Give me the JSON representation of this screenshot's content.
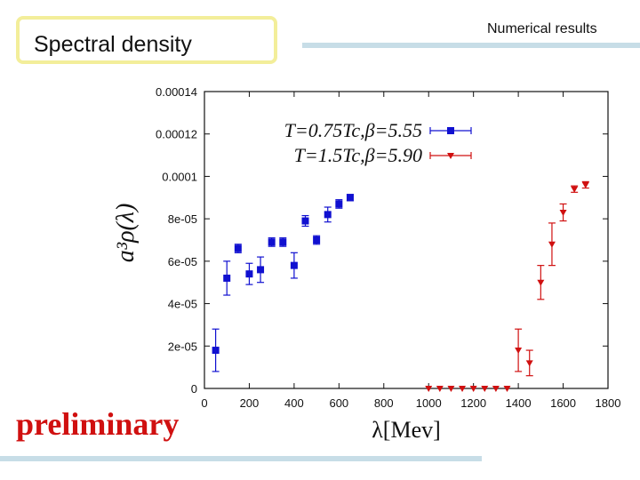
{
  "slide": {
    "title": "Spectral density",
    "header_note": "Numerical results",
    "stamp": "preliminary",
    "rule_color": "#c7dde7",
    "title_border_color": "#f3ee9a",
    "stamp_color": "#d01010"
  },
  "chart_data": {
    "type": "scatter",
    "xlabel": "λ[Mev]",
    "ylabel": "a³ρ(λ)",
    "xlim": [
      0,
      1800
    ],
    "ylim": [
      0,
      0.00014
    ],
    "x_ticks": [
      "0",
      "200",
      "400",
      "600",
      "800",
      "1000",
      "1200",
      "1400",
      "1600",
      "1800"
    ],
    "y_ticks": [
      "0",
      "2e-05",
      "4e-05",
      "6e-05",
      "8e-05",
      "0.0001",
      "0.00012",
      "0.00014"
    ],
    "grid": false,
    "legend_position": "top-left",
    "series": [
      {
        "name": "T=0.75Tc,β=5.55",
        "color": "#1010d0",
        "marker": "square",
        "points": [
          {
            "x": 50,
            "y": 1.8e-05,
            "err": 1e-05
          },
          {
            "x": 100,
            "y": 5.2e-05,
            "err": 8e-06
          },
          {
            "x": 150,
            "y": 6.6e-05,
            "err": 2e-06
          },
          {
            "x": 200,
            "y": 5.4e-05,
            "err": 5e-06
          },
          {
            "x": 250,
            "y": 5.6e-05,
            "err": 6e-06
          },
          {
            "x": 300,
            "y": 6.9e-05,
            "err": 2e-06
          },
          {
            "x": 350,
            "y": 6.9e-05,
            "err": 2e-06
          },
          {
            "x": 400,
            "y": 5.8e-05,
            "err": 6e-06
          },
          {
            "x": 450,
            "y": 7.9e-05,
            "err": 2.5e-06
          },
          {
            "x": 500,
            "y": 7e-05,
            "err": 2e-06
          },
          {
            "x": 550,
            "y": 8.2e-05,
            "err": 3.5e-06
          },
          {
            "x": 600,
            "y": 8.7e-05,
            "err": 2e-06
          },
          {
            "x": 650,
            "y": 9e-05,
            "err": 1.5e-06
          }
        ]
      },
      {
        "name": "T=1.5Tc,β=5.90",
        "color": "#d01010",
        "marker": "triangle-down",
        "points": [
          {
            "x": 1000,
            "y": 0,
            "err": 0
          },
          {
            "x": 1050,
            "y": 0,
            "err": 0
          },
          {
            "x": 1100,
            "y": 0,
            "err": 0
          },
          {
            "x": 1150,
            "y": 0,
            "err": 0
          },
          {
            "x": 1200,
            "y": 0,
            "err": 0
          },
          {
            "x": 1250,
            "y": 0,
            "err": 0
          },
          {
            "x": 1300,
            "y": 0,
            "err": 0
          },
          {
            "x": 1350,
            "y": 0,
            "err": 0
          },
          {
            "x": 1400,
            "y": 1.8e-05,
            "err": 1e-05
          },
          {
            "x": 1450,
            "y": 1.2e-05,
            "err": 6e-06
          },
          {
            "x": 1500,
            "y": 5e-05,
            "err": 8e-06
          },
          {
            "x": 1550,
            "y": 6.8e-05,
            "err": 1e-05
          },
          {
            "x": 1600,
            "y": 8.3e-05,
            "err": 4e-06
          },
          {
            "x": 1650,
            "y": 9.4e-05,
            "err": 1.5e-06
          },
          {
            "x": 1700,
            "y": 9.6e-05,
            "err": 1.5e-06
          }
        ]
      }
    ]
  }
}
